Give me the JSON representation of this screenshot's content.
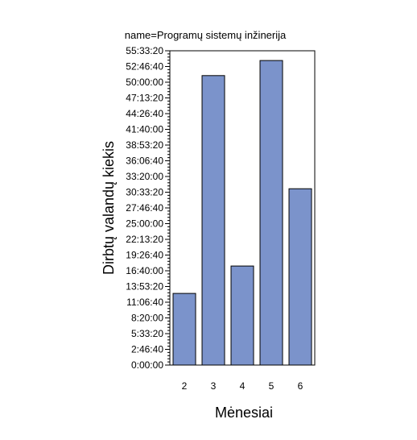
{
  "chart_data": {
    "type": "bar",
    "title": "name=Programų sistemų inžinerija",
    "xlabel": "Mėnesiai",
    "ylabel": "Dirbtų valandų kiekis",
    "categories": [
      "2",
      "3",
      "4",
      "5",
      "6"
    ],
    "values": [
      45600,
      184200,
      63000,
      193800,
      112200
    ],
    "value_unit": "seconds",
    "ylim": [
      0,
      200000
    ],
    "y_ticks": [
      0,
      10000,
      20000,
      30000,
      40000,
      50000,
      60000,
      70000,
      80000,
      90000,
      100000,
      110000,
      120000,
      130000,
      140000,
      150000,
      160000,
      170000,
      180000,
      190000,
      200000
    ],
    "y_tick_labels": [
      "0:00:00",
      "2:46:40",
      "5:33:20",
      "8:20:00",
      "11:06:40",
      "13:53:20",
      "16:40:00",
      "19:26:40",
      "22:13:20",
      "25:00:00",
      "27:46:40",
      "30:33:20",
      "33:20:00",
      "36:06:40",
      "38:53:20",
      "41:40:00",
      "44:26:40",
      "47:13:20",
      "50:00:00",
      "52:46:40",
      "55:33:20"
    ],
    "colors": {
      "bar": "#7b93cb",
      "bar_edge": "#000000"
    },
    "grid": false,
    "legend": "none"
  }
}
